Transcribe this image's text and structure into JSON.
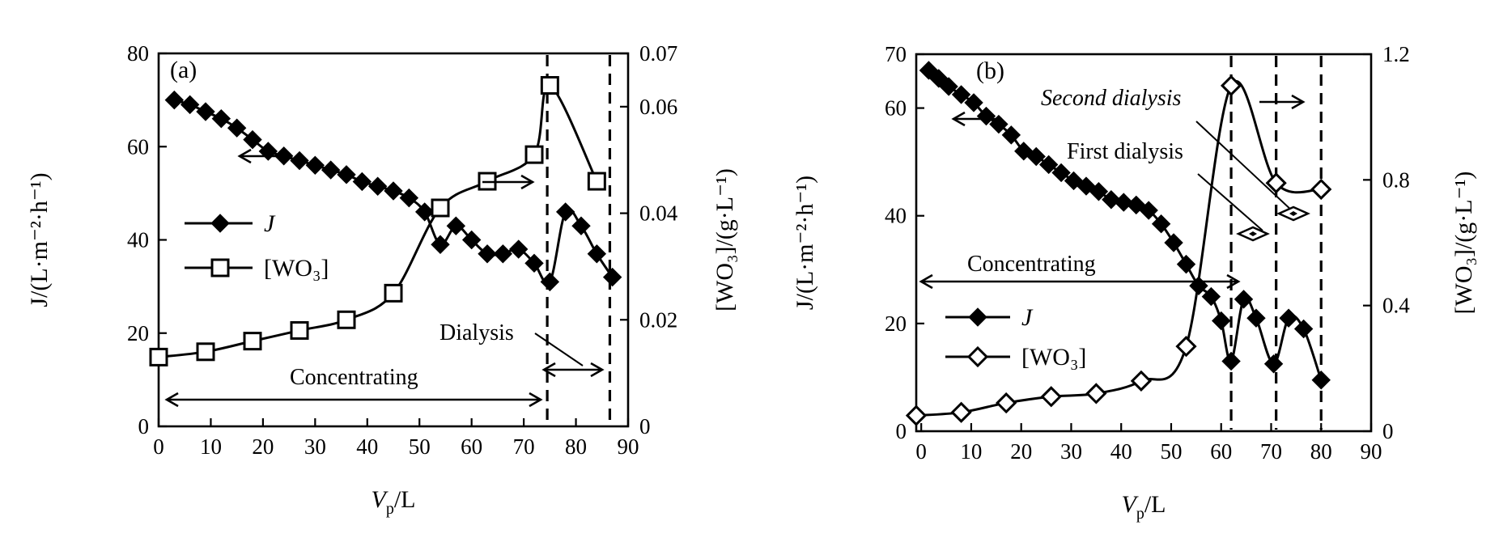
{
  "chart_data": [
    {
      "type": "line",
      "panel_label": "(a)",
      "xlabel": "V_p/L",
      "xlabel_main": "V",
      "xlabel_sub": "p",
      "xlabel_rest": "/L",
      "ylabel_left": "J/(L·m⁻²·h⁻¹)",
      "ylabel_right": "[WO₃]/(g·L⁻¹)",
      "xlim": [
        0,
        90
      ],
      "ylim_left": [
        0,
        80
      ],
      "ylim_right": [
        0,
        0.07
      ],
      "xticks": [
        0,
        10,
        20,
        30,
        40,
        50,
        60,
        70,
        80,
        90
      ],
      "yticks_left": [
        0,
        20,
        40,
        60,
        80
      ],
      "yticks_right": [
        0,
        0.02,
        0.04,
        0.06,
        0.07
      ],
      "vlines": [
        74.5,
        86.5
      ],
      "series": [
        {
          "name": "J",
          "axis": "left",
          "marker": "filled-diamond",
          "x": [
            3,
            6,
            9,
            12,
            15,
            18,
            21,
            24,
            27,
            30,
            33,
            36,
            39,
            42,
            45,
            48,
            51,
            54,
            57,
            60,
            63,
            66,
            69,
            72,
            75,
            78,
            81,
            84,
            87
          ],
          "y": [
            70,
            69,
            67.5,
            66,
            64,
            61.5,
            59,
            58,
            57,
            56,
            55,
            54,
            52.5,
            51.5,
            50.5,
            49,
            46,
            39,
            43,
            40,
            37,
            37,
            38,
            35,
            31,
            46,
            43,
            37,
            32
          ]
        },
        {
          "name": "[WO₃]",
          "axis": "right",
          "marker": "open-square",
          "x": [
            0,
            9,
            18,
            27,
            36,
            45,
            54,
            63,
            72,
            75,
            84
          ],
          "y": [
            0.013,
            0.014,
            0.016,
            0.018,
            0.02,
            0.025,
            0.041,
            0.046,
            0.051,
            0.064,
            0.046
          ]
        }
      ],
      "legend": {
        "placement": "center-left",
        "labels": [
          "J",
          "[WO₃]"
        ]
      },
      "annotations": [
        "Concentrating",
        "Dialysis"
      ]
    },
    {
      "type": "line",
      "panel_label": "(b)",
      "xlabel": "V_p/L",
      "xlabel_main": "V",
      "xlabel_sub": "p",
      "xlabel_rest": "/L",
      "ylabel_left": "J/(L·m⁻²·h⁻¹)",
      "ylabel_right": "[WO₃]/(g·L⁻¹)",
      "xlim": [
        -1,
        90
      ],
      "ylim_left": [
        0,
        70
      ],
      "ylim_right": [
        0,
        1.2
      ],
      "xticks": [
        0,
        10,
        20,
        30,
        40,
        50,
        60,
        70,
        80,
        90
      ],
      "yticks_left": [
        0,
        20,
        40,
        60,
        70
      ],
      "yticks_right": [
        0,
        0.4,
        0.8,
        1.2
      ],
      "vlines": [
        62,
        71,
        80
      ],
      "series": [
        {
          "name": "J",
          "axis": "left",
          "marker": "filled-diamond",
          "x": [
            1.5,
            3.5,
            5.5,
            8,
            10.5,
            13,
            15.5,
            18,
            20.5,
            23,
            25.5,
            28,
            30.5,
            33,
            35.5,
            38,
            40.5,
            43,
            45.5,
            48,
            50.5,
            53,
            55.5,
            58,
            60,
            62,
            64.5,
            67,
            70.5,
            73.5,
            76.5,
            80
          ],
          "y": [
            67,
            65.5,
            64,
            62.5,
            61,
            58.5,
            57,
            55,
            52,
            51,
            49.5,
            48,
            46.5,
            45.5,
            44.5,
            43,
            42.5,
            42,
            41,
            38.5,
            35,
            31,
            27,
            25,
            20.5,
            13,
            24.5,
            21,
            12.5,
            21,
            19,
            9.5
          ]
        },
        {
          "name": "[WO₃]",
          "axis": "right",
          "marker": "open-diamond",
          "x": [
            -1,
            8,
            17,
            26,
            35,
            44,
            53,
            62,
            71,
            80
          ],
          "y": [
            0.05,
            0.06,
            0.09,
            0.11,
            0.12,
            0.16,
            0.27,
            1.1,
            0.79,
            0.77
          ]
        }
      ],
      "legend": {
        "placement": "lower-left",
        "labels": [
          "J",
          "[WO₃]"
        ]
      },
      "annotations": [
        "Concentrating",
        "First dialysis",
        "Second dialysis"
      ]
    }
  ]
}
